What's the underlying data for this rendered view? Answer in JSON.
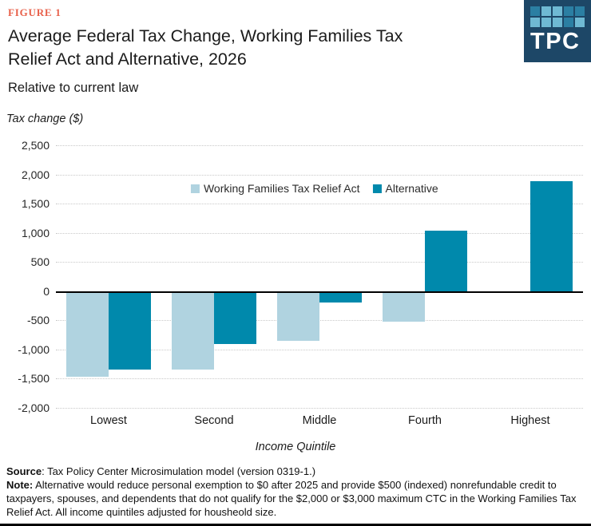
{
  "figure_label": "FIGURE 1",
  "logo": {
    "text": "TPC",
    "bg_color": "#1d4767",
    "square_light_color": "#6fb9d3",
    "square_medium_color": "#2b7fa3",
    "square_pattern": [
      [
        "med",
        "light",
        "light",
        "med",
        "med"
      ],
      [
        "light",
        "light",
        "light",
        "med",
        "light"
      ]
    ]
  },
  "title": {
    "line1": "Average Federal Tax Change, Working Families Tax",
    "line2": "Relief Act and Alternative, 2026"
  },
  "subtitle": "Relative to current law",
  "chart_data": {
    "type": "bar",
    "title": "Average Federal Tax Change, Working Families Tax Relief Act and Alternative, 2026",
    "subtitle": "Relative to current law",
    "ylabel": "Tax change ($)",
    "xlabel": "Income Quintile",
    "categories": [
      "Lowest",
      "Second",
      "Middle",
      "Fourth",
      "Highest"
    ],
    "series": [
      {
        "name": "Working Families Tax Relief Act",
        "color": "#b0d3e0",
        "values": [
          -1470,
          -1340,
          -850,
          -520,
          -30
        ]
      },
      {
        "name": "Alternative",
        "color": "#0089ac",
        "values": [
          -1350,
          -900,
          -190,
          1030,
          1880
        ]
      }
    ],
    "ylim": [
      -2000,
      2500
    ],
    "ytick_values": [
      2500,
      2000,
      1500,
      1000,
      500,
      0,
      -500,
      -1000,
      -1500,
      -2000
    ],
    "ytick_labels": [
      "2,500",
      "2,000",
      "1,500",
      "1,000",
      "500",
      "0",
      "-500",
      "-1,000",
      "-1,500",
      "-2,000"
    ],
    "grid": "horizontal dotted, solid black zero line",
    "legend_position": "inside top center"
  },
  "footer": {
    "source_label": "Source",
    "source_text": ": Tax Policy Center Microsimulation model (version 0319-1.)",
    "note_label": "Note:",
    "note_text": " Alternative would reduce personal exemption to $0 after 2025 and provide $500 (indexed) nonrefundable credit to taxpayers, spouses, and dependents that do not qualify for the $2,000 or $3,000 maximum CTC in the Working Families Tax Relief Act. All income quintiles adjusted for housheold size."
  }
}
